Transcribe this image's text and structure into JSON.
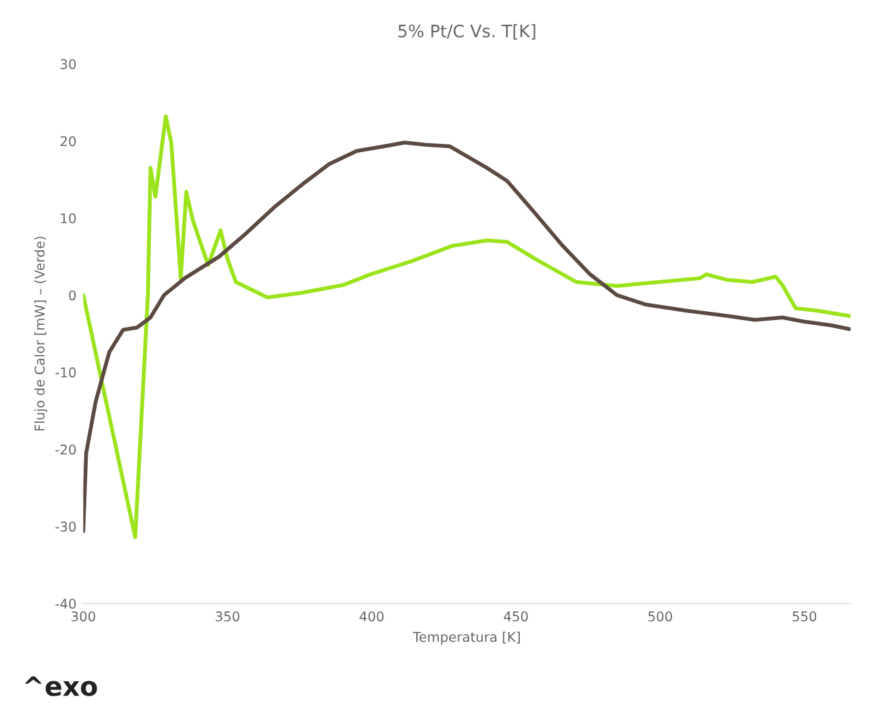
{
  "chart_data": {
    "type": "line",
    "title": "5% Pt/C Vs. T[K]",
    "xlabel": "Temperatura [K]",
    "ylabel": "Flujo de Calor [mW] – (Verde)",
    "annotations": [
      "^exo"
    ],
    "xlim": [
      300,
      566
    ],
    "ylim": [
      -40,
      30
    ],
    "xticks": [
      300,
      350,
      400,
      450,
      500,
      550
    ],
    "yticks": [
      -40,
      -30,
      -20,
      -10,
      0,
      10,
      20,
      30
    ],
    "grid": false,
    "legend": false,
    "marker": "none",
    "line_style": "solid",
    "series": [
      {
        "color": "#9be31a",
        "x": [
          300,
          318,
          322.4,
          323.3,
          325,
          328.6,
          330.5,
          333.8,
          335.7,
          338,
          343.3,
          347.6,
          350,
          352.9,
          363.8,
          375.7,
          390,
          399.5,
          413.8,
          428,
          440,
          447,
          456.7,
          471,
          485,
          499.5,
          513.8,
          516,
          523,
          532,
          540,
          542.4,
          547,
          554.3,
          565.7
        ],
        "values": [
          0,
          -31.4,
          0,
          16.5,
          12.8,
          23.2,
          19.8,
          2.2,
          13.4,
          9.7,
          3.9,
          8.4,
          4.7,
          1.7,
          -0.3,
          0.3,
          1.3,
          2.7,
          4.4,
          6.4,
          7.1,
          6.9,
          4.7,
          1.7,
          1.2,
          1.7,
          2.2,
          2.7,
          2.0,
          1.7,
          2.4,
          1.3,
          -1.7,
          -2.0,
          -2.7
        ]
      },
      {
        "color": "#5a4a42",
        "x": [
          300,
          301,
          304.3,
          309,
          313.8,
          318.6,
          323.3,
          328,
          335.2,
          347.1,
          356.7,
          366.2,
          375.7,
          385.2,
          394.8,
          404.3,
          411.4,
          418.6,
          427.1,
          440,
          447,
          456.7,
          466.2,
          475.7,
          485,
          494.8,
          509,
          523.3,
          532.9,
          542.4,
          549.5,
          559,
          565.7
        ],
        "values": [
          -30.6,
          -20.5,
          -13.8,
          -7.4,
          -4.5,
          -4.2,
          -2.9,
          0,
          2.2,
          5.0,
          8.1,
          11.4,
          14.3,
          17.0,
          18.7,
          19.3,
          19.8,
          19.5,
          19.3,
          16.5,
          14.8,
          10.6,
          6.4,
          2.7,
          0,
          -1.2,
          -2.0,
          -2.7,
          -3.2,
          -2.9,
          -3.4,
          -3.9,
          -4.4
        ]
      }
    ]
  }
}
